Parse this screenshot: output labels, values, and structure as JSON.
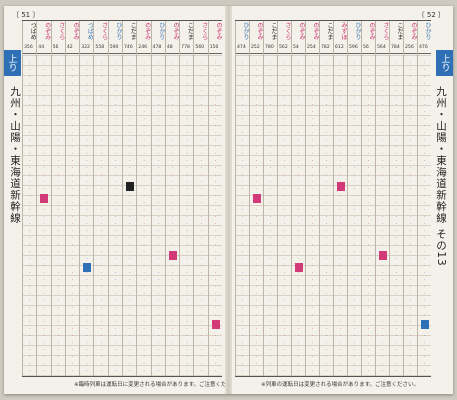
{
  "left_page": {
    "page_number": "〔 51 〕",
    "tab_label": "上り",
    "vertical_title": "九州・山陽・東海道新幹線",
    "columns": [
      {
        "name": "つばめ",
        "no": "356",
        "color": "black"
      },
      {
        "name": "のぞみ",
        "no": "44",
        "color": "pink"
      },
      {
        "name": "さくら",
        "no": "56",
        "color": "pink"
      },
      {
        "name": "のぞみ",
        "no": "42",
        "color": "pink"
      },
      {
        "name": "つばめ",
        "no": "322",
        "color": "blue"
      },
      {
        "name": "さくら",
        "no": "558",
        "color": "pink"
      },
      {
        "name": "ひかり",
        "no": "590",
        "color": "blue"
      },
      {
        "name": "こだま",
        "no": "746",
        "color": "black"
      },
      {
        "name": "のぞみ",
        "no": "246",
        "color": "pink"
      },
      {
        "name": "ひかり",
        "no": "478",
        "color": "blue"
      },
      {
        "name": "のぞみ",
        "no": "48",
        "color": "pink"
      },
      {
        "name": "こだま",
        "no": "778",
        "color": "black"
      },
      {
        "name": "さくら",
        "no": "560",
        "color": "pink"
      },
      {
        "name": "のぞみ",
        "no": "150",
        "color": "pink"
      }
    ],
    "footer_note": "※臨時列車は運転日に変更される場合があります。ご注意ください。"
  },
  "right_page": {
    "page_number": "〔 52 〕",
    "tab_label": "上り",
    "vertical_title": "九州・山陽・東海道新幹線 その13",
    "columns": [
      {
        "name": "ひかり",
        "no": "474",
        "color": "blue"
      },
      {
        "name": "のぞみ",
        "no": "252",
        "color": "pink"
      },
      {
        "name": "こだま",
        "no": "780",
        "color": "black"
      },
      {
        "name": "さくら",
        "no": "562",
        "color": "pink"
      },
      {
        "name": "のぞみ",
        "no": "54",
        "color": "pink"
      },
      {
        "name": "のぞみ",
        "no": "254",
        "color": "pink"
      },
      {
        "name": "こだま",
        "no": "782",
        "color": "black"
      },
      {
        "name": "みずほ",
        "no": "612",
        "color": "pink"
      },
      {
        "name": "ひかり",
        "no": "596",
        "color": "blue"
      },
      {
        "name": "のぞみ",
        "no": "56",
        "color": "pink"
      },
      {
        "name": "さくら",
        "no": "564",
        "color": "pink"
      },
      {
        "name": "こだま",
        "no": "784",
        "color": "black"
      },
      {
        "name": "のぞみ",
        "no": "256",
        "color": "pink"
      },
      {
        "name": "ひかり",
        "no": "476",
        "color": "blue"
      }
    ],
    "footer_note": "※列車の運転日は変更される場合があります。ご注意ください。"
  }
}
